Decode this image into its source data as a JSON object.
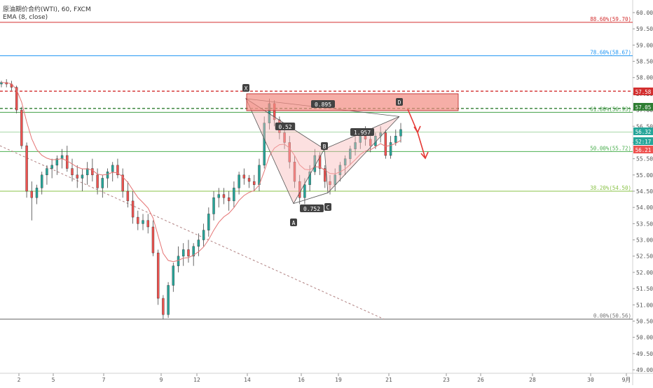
{
  "header": {
    "symbol_line": "原油期价合约(WTI), 60, FXCM",
    "indicator_line": "EMA (8, close)"
  },
  "colors": {
    "up_candle": "#26a69a",
    "down_candle": "#ef5350",
    "ema": "#e57373",
    "fib_886": "#d32f2f",
    "fib_786": "#2196f3",
    "fib_618": "#43a047",
    "fib_50": "#4caf50",
    "fib_382": "#8bc34a",
    "fib_0": "#757575",
    "red_dashed": "#d32f2f",
    "green_dashed": "#2e7d32",
    "pattern_fill": "#f8bbbb",
    "zone_fill": "#f28b82",
    "arrow": "#e53935"
  },
  "chart_data": {
    "type": "candlestick",
    "title": "原油期价合约(WTI), 60, FXCM",
    "indicator": "EMA (8, close)",
    "ylim": [
      49.0,
      60.4
    ],
    "y_ticks": [
      "60.00",
      "59.50",
      "59.00",
      "58.50",
      "58.00",
      "57.50",
      "57.00",
      "56.50",
      "56.00",
      "55.50",
      "55.00",
      "54.50",
      "54.00",
      "53.50",
      "53.00",
      "52.50",
      "52.00",
      "51.50",
      "51.00",
      "50.50",
      "50.00",
      "49.50",
      "49.00"
    ],
    "x_ticks": [
      "2",
      "5",
      "7",
      "9",
      "12",
      "14",
      "16",
      "19",
      "21",
      "23",
      "26",
      "28",
      "30",
      "9月"
    ],
    "fib_levels": [
      {
        "label": "88.60%(59.70)",
        "value": 59.7,
        "color": "#d32f2f"
      },
      {
        "label": "78.60%(58.67)",
        "value": 58.67,
        "color": "#2196f3"
      },
      {
        "label": "61.80%(56.93)",
        "value": 56.93,
        "color": "#43a047"
      },
      {
        "label": "50.00%(55.72)",
        "value": 55.72,
        "color": "#4caf50"
      },
      {
        "label": "38.20%(54.50)",
        "value": 54.5,
        "color": "#8bc34a"
      },
      {
        "label": "0.00%(50.56)",
        "value": 50.56,
        "color": "#757575"
      }
    ],
    "price_tags": [
      {
        "label": "57.58",
        "value": 57.58,
        "color": "#d32f2f"
      },
      {
        "label": "57.05",
        "value": 57.05,
        "color": "#2e7d32"
      },
      {
        "label": "56.32",
        "value": 56.32,
        "color": "#26a69a"
      },
      {
        "label": "52:17",
        "value": 56.05,
        "color": "#26a69a"
      },
      {
        "label": "56.21",
        "value": 55.78,
        "color": "#ef5350"
      }
    ],
    "pattern_points": [
      {
        "name": "X",
        "x_day": 14.0,
        "y": 57.35
      },
      {
        "name": "A",
        "x_day": 15.7,
        "y": 54.1
      },
      {
        "name": "B",
        "x_day": 17.7,
        "y": 55.75
      },
      {
        "name": "C",
        "x_day": 18.6,
        "y": 54.4
      },
      {
        "name": "D",
        "x_day": 21.4,
        "y": 56.72
      }
    ],
    "pattern_ratios": [
      {
        "label": "0.52",
        "x_day": 15.3,
        "y": 56.3
      },
      {
        "label": "0.895",
        "x_day": 17.5,
        "y": 56.75
      },
      {
        "label": "0.752",
        "x_day": 16.2,
        "y": 54.0
      },
      {
        "label": "1.957",
        "x_day": 19.8,
        "y": 56.15
      }
    ],
    "candles": [
      [
        0.0,
        57.8,
        57.9,
        57.7,
        57.85
      ],
      [
        0.2,
        57.85,
        57.95,
        57.7,
        57.8
      ],
      [
        0.4,
        57.8,
        57.9,
        57.6,
        57.7
      ],
      [
        0.6,
        57.7,
        57.75,
        56.9,
        57.0
      ],
      [
        0.8,
        57.0,
        57.1,
        55.8,
        55.9
      ],
      [
        1.0,
        55.9,
        56.0,
        54.3,
        54.5
      ],
      [
        1.2,
        54.5,
        54.8,
        53.6,
        54.3
      ],
      [
        1.4,
        54.3,
        54.7,
        54.1,
        54.6
      ],
      [
        1.6,
        54.6,
        55.1,
        54.4,
        55.0
      ],
      [
        1.8,
        55.0,
        55.3,
        54.7,
        55.2
      ],
      [
        2.0,
        55.2,
        55.5,
        54.9,
        55.3
      ],
      [
        2.2,
        55.3,
        55.6,
        55.0,
        55.5
      ],
      [
        2.4,
        55.5,
        55.8,
        55.2,
        55.6
      ],
      [
        2.6,
        55.6,
        55.9,
        55.1,
        55.2
      ],
      [
        2.8,
        55.2,
        55.5,
        54.8,
        55.0
      ],
      [
        3.0,
        55.0,
        55.3,
        54.6,
        54.9
      ],
      [
        3.2,
        54.9,
        55.2,
        54.5,
        55.0
      ],
      [
        3.4,
        55.0,
        55.4,
        54.7,
        55.2
      ],
      [
        3.6,
        55.2,
        55.5,
        54.8,
        55.0
      ],
      [
        3.8,
        55.0,
        55.2,
        54.4,
        54.6
      ],
      [
        4.0,
        54.6,
        55.0,
        54.3,
        54.9
      ],
      [
        4.2,
        54.9,
        55.2,
        54.6,
        55.1
      ],
      [
        4.4,
        55.1,
        55.4,
        54.8,
        55.3
      ],
      [
        4.6,
        55.3,
        55.5,
        54.9,
        55.0
      ],
      [
        4.8,
        55.0,
        55.2,
        54.3,
        54.5
      ],
      [
        5.0,
        54.5,
        54.8,
        54.0,
        54.2
      ],
      [
        5.2,
        54.2,
        54.5,
        53.5,
        53.7
      ],
      [
        5.4,
        53.7,
        53.9,
        53.3,
        53.5
      ],
      [
        5.6,
        53.5,
        53.8,
        53.3,
        53.6
      ],
      [
        5.8,
        53.6,
        53.8,
        53.2,
        53.4
      ],
      [
        6.0,
        53.4,
        53.6,
        52.5,
        52.6
      ],
      [
        6.2,
        52.6,
        52.7,
        51.0,
        51.2
      ],
      [
        6.4,
        51.2,
        51.3,
        50.56,
        50.7
      ],
      [
        6.6,
        50.7,
        51.7,
        50.6,
        51.6
      ],
      [
        6.8,
        51.6,
        52.3,
        51.4,
        52.2
      ],
      [
        7.0,
        52.2,
        52.8,
        52.0,
        52.5
      ],
      [
        7.2,
        52.5,
        52.9,
        52.2,
        52.7
      ],
      [
        7.4,
        52.7,
        53.0,
        52.3,
        52.5
      ],
      [
        7.6,
        52.5,
        52.9,
        52.2,
        52.8
      ],
      [
        7.8,
        52.8,
        53.2,
        52.5,
        53.0
      ],
      [
        8.0,
        53.0,
        53.5,
        52.8,
        53.3
      ],
      [
        8.2,
        53.3,
        54.0,
        53.1,
        53.8
      ],
      [
        8.4,
        53.8,
        54.5,
        53.6,
        54.3
      ],
      [
        8.6,
        54.3,
        54.6,
        54.0,
        54.4
      ],
      [
        8.8,
        54.4,
        54.6,
        54.1,
        54.3
      ],
      [
        9.0,
        54.3,
        54.5,
        53.9,
        54.2
      ],
      [
        9.2,
        54.2,
        54.8,
        54.0,
        54.6
      ],
      [
        9.4,
        54.6,
        55.1,
        54.4,
        55.0
      ],
      [
        9.6,
        55.0,
        55.2,
        54.7,
        54.9
      ],
      [
        9.8,
        54.9,
        55.0,
        54.6,
        54.8
      ],
      [
        10.0,
        54.8,
        55.0,
        54.5,
        54.7
      ],
      [
        10.2,
        54.7,
        55.5,
        54.5,
        55.3
      ],
      [
        10.4,
        55.3,
        56.8,
        55.2,
        56.6
      ],
      [
        10.6,
        56.6,
        57.35,
        56.4,
        57.2
      ],
      [
        10.8,
        57.2,
        57.3,
        56.5,
        56.7
      ],
      [
        11.0,
        56.7,
        56.8,
        56.1,
        56.3
      ],
      [
        11.2,
        56.3,
        56.5,
        55.8,
        56.0
      ],
      [
        11.4,
        56.0,
        56.2,
        55.2,
        55.4
      ],
      [
        11.6,
        55.4,
        55.6,
        54.6,
        54.8
      ],
      [
        11.8,
        54.8,
        55.0,
        54.1,
        54.3
      ],
      [
        12.0,
        54.3,
        54.9,
        54.1,
        54.7
      ],
      [
        12.2,
        54.7,
        55.3,
        54.5,
        55.1
      ],
      [
        12.4,
        55.1,
        55.8,
        55.0,
        55.6
      ],
      [
        12.6,
        55.6,
        55.7,
        55.0,
        55.2
      ],
      [
        12.8,
        55.2,
        55.3,
        54.6,
        54.8
      ],
      [
        13.0,
        54.8,
        55.0,
        54.4,
        54.7
      ],
      [
        13.2,
        54.7,
        55.2,
        54.5,
        55.0
      ],
      [
        13.4,
        55.0,
        55.4,
        54.8,
        55.3
      ],
      [
        13.6,
        55.3,
        55.6,
        55.0,
        55.5
      ],
      [
        13.8,
        55.5,
        55.9,
        55.3,
        55.8
      ],
      [
        14.0,
        55.8,
        56.2,
        55.6,
        56.0
      ],
      [
        14.2,
        56.0,
        56.4,
        55.8,
        56.2
      ],
      [
        14.4,
        56.2,
        56.5,
        55.9,
        56.1
      ],
      [
        14.6,
        56.1,
        56.4,
        55.7,
        55.9
      ],
      [
        14.8,
        55.9,
        56.3,
        55.8,
        56.2
      ],
      [
        15.0,
        56.2,
        56.5,
        56.0,
        56.3
      ],
      [
        15.2,
        56.3,
        56.4,
        55.5,
        55.6
      ],
      [
        15.4,
        55.6,
        56.2,
        55.5,
        56.0
      ],
      [
        15.6,
        56.0,
        56.4,
        55.9,
        56.2
      ],
      [
        15.8,
        56.2,
        56.6,
        56.0,
        56.4
      ]
    ]
  }
}
